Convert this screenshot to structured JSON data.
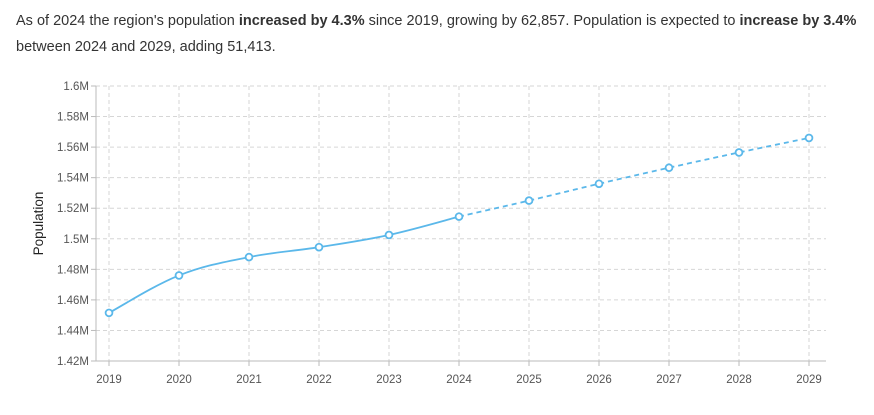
{
  "summary": {
    "part1": "As of 2024 the region's population ",
    "bold1": "increased by 4.3%",
    "part2": " since 2019, growing by 62,857. Population is expected to ",
    "bold2": "increase by 3.4%",
    "part3": " between 2024 and 2029, adding 51,413."
  },
  "colors": {
    "line": "#5bb8ea",
    "grid": "#d6d6d6",
    "axis": "#bbbbbb"
  },
  "chart_data": {
    "type": "line",
    "ylabel": "Population",
    "xlabel": "",
    "ylim": [
      1420000,
      1600000
    ],
    "yticks": [
      1420000,
      1440000,
      1460000,
      1480000,
      1500000,
      1520000,
      1540000,
      1560000,
      1580000,
      1600000
    ],
    "ytick_labels": [
      "1.42M",
      "1.44M",
      "1.46M",
      "1.48M",
      "1.5M",
      "1.52M",
      "1.54M",
      "1.56M",
      "1.58M",
      "1.6M"
    ],
    "x": [
      "2019",
      "2020",
      "2021",
      "2022",
      "2023",
      "2024",
      "2025",
      "2026",
      "2027",
      "2028",
      "2029"
    ],
    "grid": true,
    "series": [
      {
        "style": "solid",
        "x": [
          "2019",
          "2020",
          "2021",
          "2022",
          "2023",
          "2024"
        ],
        "values": [
          1451500,
          1476000,
          1488000,
          1494500,
          1502500,
          1514500
        ]
      },
      {
        "style": "dashed",
        "x": [
          "2024",
          "2025",
          "2026",
          "2027",
          "2028",
          "2029"
        ],
        "values": [
          1514500,
          1525000,
          1536000,
          1546500,
          1556500,
          1566000
        ]
      }
    ]
  }
}
